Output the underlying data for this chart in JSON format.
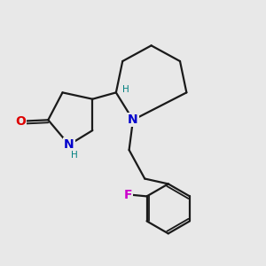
{
  "background_color": "#e8e8e8",
  "bond_color": "#1a1a1a",
  "bond_width": 1.6,
  "atom_colors": {
    "O": "#dd0000",
    "N": "#0000cc",
    "F": "#cc00cc",
    "H": "#008080"
  }
}
